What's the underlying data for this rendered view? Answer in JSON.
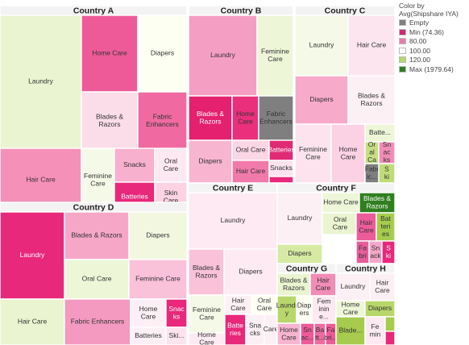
{
  "chart_data": {
    "type": "treemap",
    "legend": {
      "title_lines": [
        "Color by",
        "Avg(Shipshare  IYA)"
      ],
      "placement": "top-right",
      "items": [
        {
          "label": "Empty",
          "color": "#7f7f7f"
        },
        {
          "label": "Min (74.36)",
          "color": "#d6246e"
        },
        {
          "label": "80.00",
          "color": "#ec7aac"
        },
        {
          "label": "100.00",
          "color": "#ffffff"
        },
        {
          "label": "120.00",
          "color": "#b8d76a"
        },
        {
          "label": "Max (1979.64)",
          "color": "#2f7f1f"
        }
      ]
    },
    "countries": [
      {
        "name": "Country A",
        "segments": [
          {
            "label": "Laundry",
            "color": "#eaf4d0"
          },
          {
            "label": "Home Care",
            "color": "#ee5a98"
          },
          {
            "label": "Diapers",
            "color": "#fcfff2"
          },
          {
            "label": "Blades & Razors",
            "color": "#fbdde9"
          },
          {
            "label": "Fabric Enhancers",
            "color": "#f06aa1"
          },
          {
            "label": "Hair Care",
            "color": "#f590b8"
          },
          {
            "label": "Feminine Care",
            "color": "#f5fae8"
          },
          {
            "label": "Snacks",
            "color": "#f7b0cd"
          },
          {
            "label": "Oral Care",
            "color": "#fde9f1"
          },
          {
            "label": "Batteries",
            "color": "#e8287a"
          },
          {
            "label": "Skin Care",
            "color": "#fbd3e3"
          }
        ]
      },
      {
        "name": "Country B",
        "segments": [
          {
            "label": "Laundry",
            "color": "#f59ec3"
          },
          {
            "label": "Feminine Care",
            "color": "#eef6d8"
          },
          {
            "label": "Blades & Razors",
            "color": "#e4206f"
          },
          {
            "label": "Home Care",
            "color": "#ea2f7c"
          },
          {
            "label": "Fabric Enhancers",
            "color": "#7f7f7f"
          },
          {
            "label": "Diapers",
            "color": "#f7b5d0"
          },
          {
            "label": "Oral Care",
            "color": "#fbd6e5"
          },
          {
            "label": "Batteries",
            "color": "#e12a74"
          },
          {
            "label": "Hair Care",
            "color": "#f27aab"
          },
          {
            "label": "Snacks",
            "color": "#fce3ee"
          },
          {
            "label": "",
            "color": "#e8287a"
          }
        ]
      },
      {
        "name": "Country C",
        "segments": [
          {
            "label": "Laundry",
            "color": "#f5fae8"
          },
          {
            "label": "Hair Care",
            "color": "#fce5ef"
          },
          {
            "label": "Diapers",
            "color": "#f7aac9"
          },
          {
            "label": "Blades & Razors",
            "color": "#fdf0f5"
          },
          {
            "label": "Feminine Care",
            "color": "#fce3ee"
          },
          {
            "label": "Home Care",
            "color": "#fbd2e3"
          },
          {
            "label": "Batte...",
            "color": "#eef6d8"
          },
          {
            "label": "Or al Ca",
            "color": "#c5df82"
          },
          {
            "label": "Sn ac ks",
            "color": "#f28db7"
          },
          {
            "label": "Fabr ic...",
            "color": "#7f7f7f"
          },
          {
            "label": "S ki",
            "color": "#c0dc78"
          }
        ]
      },
      {
        "name": "Country D",
        "segments": [
          {
            "label": "Laundry",
            "color": "#e8287a"
          },
          {
            "label": "Blades & Razors",
            "color": "#f6a7c7"
          },
          {
            "label": "Diapers",
            "color": "#f2f8e0"
          },
          {
            "label": "Oral Care",
            "color": "#eef6d8"
          },
          {
            "label": "Feminine Care",
            "color": "#f9c2d8"
          },
          {
            "label": "Hair Care",
            "color": "#eaf4d0"
          },
          {
            "label": "Fabric Enhancers",
            "color": "#f49ac0"
          },
          {
            "label": "Home Care",
            "color": "#fdf0f5"
          },
          {
            "label": "Snac ks",
            "color": "#e8287a"
          },
          {
            "label": "Batteries",
            "color": "#fdf0f5"
          },
          {
            "label": "Ski...",
            "color": "#fce3ee"
          }
        ]
      },
      {
        "name": "Country E",
        "segments": [
          {
            "label": "Laundry",
            "color": "#fdeaf2"
          },
          {
            "label": "Blades & Razors",
            "color": "#f9c2d8"
          },
          {
            "label": "Diapers",
            "color": "#fdeaf2"
          },
          {
            "label": "Feminine Care",
            "color": "#f5fae8"
          },
          {
            "label": "Hair Care",
            "color": "#fdf0f5"
          },
          {
            "label": "Oral Care",
            "color": "#fcfff2"
          },
          {
            "label": "Home Care",
            "color": "#fdeaf2"
          },
          {
            "label": "Batte ries",
            "color": "#e8287a"
          },
          {
            "label": "Sna cks",
            "color": "#fdf0f5"
          },
          {
            "label": "Care",
            "color": "#fdf0f5"
          }
        ]
      },
      {
        "name": "Country F",
        "segments": [
          {
            "label": "Laundry",
            "color": "#fdf0f5"
          },
          {
            "label": "Home Care",
            "color": "#eef6d8"
          },
          {
            "label": "Blades & Razors",
            "color": "#2f7f1f"
          },
          {
            "label": "Diapers",
            "color": "#d7eaa4"
          },
          {
            "label": "Oral Care",
            "color": "#eaf4d0"
          },
          {
            "label": "Hair Care",
            "color": "#ec5c9b"
          },
          {
            "label": "Bat teri es",
            "color": "#a5cc4d"
          },
          {
            "label": "Fa bri",
            "color": "#e85c9b"
          },
          {
            "label": "Sn ack",
            "color": "#f6a7c7"
          },
          {
            "label": "S ki",
            "color": "#e8287a"
          }
        ]
      },
      {
        "name": "Country G",
        "segments": [
          {
            "label": "Blades & Razors",
            "color": "#eaf4d0"
          },
          {
            "label": "Hair Care",
            "color": "#f28db7"
          },
          {
            "label": "Laundr y",
            "color": "#b8d76a"
          },
          {
            "label": "Diap ers",
            "color": "#fcfff2"
          },
          {
            "label": "Fem inin e...",
            "color": "#fde9f1"
          },
          {
            "label": "Home Care",
            "color": "#f7b5d0"
          },
          {
            "label": "Sn ac...",
            "color": "#ee5a98"
          },
          {
            "label": "Ba tt...",
            "color": "#f06aa1"
          },
          {
            "label": "Fa bri...",
            "color": "#ee5a98"
          }
        ]
      },
      {
        "name": "Country H",
        "segments": [
          {
            "label": "Laundry",
            "color": "#fdf0f5"
          },
          {
            "label": "Hair Care",
            "color": "#fdf0f5"
          },
          {
            "label": "Home Care",
            "color": "#eef6d8"
          },
          {
            "label": "Diapers",
            "color": "#b8d76a"
          },
          {
            "label": "Blade...",
            "color": "#a5cc4d"
          },
          {
            "label": "Fe min",
            "color": "#fdeaf2"
          },
          {
            "label": "",
            "color": "#a5cc4d"
          },
          {
            "label": "",
            "color": "#e8287a"
          }
        ]
      }
    ]
  }
}
